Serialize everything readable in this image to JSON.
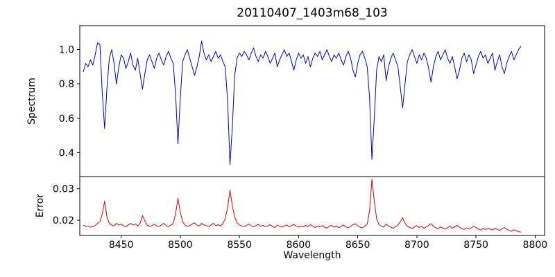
{
  "chart_data": {
    "type": "line",
    "title": "20110407_1403m68_103",
    "xlabel": "Wavelength",
    "xlim": [
      8415,
      8808
    ],
    "xticks": [
      8450,
      8500,
      8550,
      8600,
      8650,
      8700,
      8750,
      8800
    ],
    "xtick_labels": [
      "8450",
      "8500",
      "8550",
      "8600",
      "8650",
      "8700",
      "8750",
      "8800"
    ],
    "grid": false,
    "legend": "none",
    "x": [
      8418,
      8420,
      8422,
      8424,
      8426,
      8428,
      8430,
      8432,
      8434,
      8436,
      8438,
      8440,
      8442,
      8444,
      8446,
      8448,
      8450,
      8452,
      8454,
      8456,
      8458,
      8460,
      8462,
      8464,
      8466,
      8468,
      8470,
      8472,
      8474,
      8476,
      8478,
      8480,
      8482,
      8484,
      8486,
      8488,
      8490,
      8492,
      8494,
      8496,
      8498,
      8500,
      8502,
      8504,
      8506,
      8508,
      8510,
      8512,
      8514,
      8516,
      8518,
      8520,
      8522,
      8524,
      8526,
      8528,
      8530,
      8532,
      8534,
      8536,
      8538,
      8540,
      8542,
      8544,
      8546,
      8548,
      8550,
      8552,
      8554,
      8556,
      8558,
      8560,
      8562,
      8564,
      8566,
      8568,
      8570,
      8572,
      8574,
      8576,
      8578,
      8580,
      8582,
      8584,
      8586,
      8588,
      8590,
      8592,
      8594,
      8596,
      8598,
      8600,
      8602,
      8604,
      8606,
      8608,
      8610,
      8612,
      8614,
      8616,
      8618,
      8620,
      8622,
      8624,
      8626,
      8628,
      8630,
      8632,
      8634,
      8636,
      8638,
      8640,
      8642,
      8644,
      8646,
      8648,
      8650,
      8652,
      8654,
      8656,
      8658,
      8660,
      8662,
      8664,
      8666,
      8668,
      8670,
      8672,
      8674,
      8676,
      8678,
      8680,
      8682,
      8684,
      8686,
      8688,
      8690,
      8692,
      8694,
      8696,
      8698,
      8700,
      8702,
      8704,
      8706,
      8708,
      8710,
      8712,
      8714,
      8716,
      8718,
      8720,
      8722,
      8724,
      8726,
      8728,
      8730,
      8732,
      8734,
      8736,
      8738,
      8740,
      8742,
      8744,
      8746,
      8748,
      8750,
      8752,
      8754,
      8756,
      8758,
      8760,
      8762,
      8764,
      8766,
      8768,
      8770,
      8772,
      8774,
      8776,
      8778,
      8780,
      8782,
      8784,
      8786,
      8788
    ],
    "panels": [
      {
        "name": "spectrum",
        "ylabel": "Spectrum",
        "color": "#0000cc",
        "ylim": [
          0.26,
          1.14
        ],
        "yticks": [
          0.4,
          0.6,
          0.8,
          1.0
        ],
        "ytick_labels": [
          "0.4",
          "0.6",
          "0.8",
          "1.0"
        ],
        "values": [
          0.87,
          0.92,
          0.9,
          0.94,
          0.91,
          0.97,
          1.04,
          1.03,
          0.75,
          0.54,
          0.78,
          0.95,
          1.0,
          0.92,
          0.8,
          0.9,
          0.97,
          0.95,
          0.89,
          0.93,
          0.98,
          0.91,
          0.88,
          0.95,
          0.86,
          0.77,
          0.86,
          0.94,
          0.97,
          0.93,
          0.89,
          0.95,
          0.98,
          0.94,
          0.91,
          0.96,
          0.99,
          0.95,
          0.92,
          0.74,
          0.45,
          0.72,
          0.93,
          0.97,
          1.0,
          0.95,
          0.9,
          0.85,
          0.9,
          0.96,
          1.05,
          0.98,
          0.94,
          0.97,
          0.93,
          0.96,
          0.99,
          0.95,
          0.97,
          0.93,
          0.9,
          0.7,
          0.33,
          0.55,
          0.85,
          0.95,
          0.98,
          0.96,
          0.99,
          0.97,
          0.94,
          0.98,
          1.01,
          0.96,
          0.93,
          0.97,
          0.95,
          0.99,
          0.96,
          0.92,
          0.95,
          0.98,
          0.9,
          0.94,
          0.97,
          1.0,
          0.96,
          0.98,
          0.93,
          0.88,
          0.94,
          0.98,
          0.95,
          0.97,
          0.92,
          0.96,
          0.9,
          0.95,
          0.98,
          0.96,
          0.99,
          0.94,
          0.97,
          1.0,
          0.96,
          0.93,
          0.97,
          0.95,
          0.98,
          0.94,
          0.91,
          0.96,
          0.99,
          0.95,
          0.88,
          0.84,
          0.92,
          0.97,
          0.99,
          0.95,
          0.9,
          0.72,
          0.36,
          0.6,
          0.88,
          0.96,
          0.93,
          0.97,
          0.82,
          0.9,
          0.95,
          0.98,
          0.94,
          0.9,
          0.78,
          0.66,
          0.8,
          0.93,
          0.97,
          1.0,
          0.96,
          0.92,
          0.97,
          0.94,
          0.98,
          0.95,
          0.89,
          0.81,
          0.9,
          0.96,
          0.99,
          0.94,
          0.97,
          1.0,
          0.95,
          0.92,
          0.96,
          0.9,
          0.83,
          0.88,
          0.95,
          0.98,
          0.93,
          0.97,
          0.94,
          0.86,
          0.91,
          0.96,
          0.99,
          0.95,
          0.97,
          0.92,
          0.95,
          0.98,
          0.88,
          0.93,
          0.97,
          0.9,
          0.86,
          0.92,
          0.96,
          0.99,
          0.94,
          0.97,
          1.0,
          1.02
        ]
      },
      {
        "name": "error",
        "ylabel": "Error",
        "color": "#dd0000",
        "ylim": [
          0.0152,
          0.0338
        ],
        "yticks": [
          0.02,
          0.03
        ],
        "ytick_labels": [
          "0.02",
          "0.03"
        ],
        "values": [
          0.0185,
          0.018,
          0.0182,
          0.0178,
          0.018,
          0.0183,
          0.019,
          0.0195,
          0.022,
          0.026,
          0.021,
          0.019,
          0.0185,
          0.0182,
          0.019,
          0.0185,
          0.0188,
          0.0182,
          0.018,
          0.0185,
          0.019,
          0.0185,
          0.0188,
          0.0182,
          0.019,
          0.0215,
          0.0198,
          0.0185,
          0.018,
          0.0183,
          0.0188,
          0.0182,
          0.018,
          0.0185,
          0.019,
          0.0183,
          0.018,
          0.0185,
          0.019,
          0.022,
          0.027,
          0.0225,
          0.0195,
          0.0185,
          0.018,
          0.0183,
          0.0188,
          0.0192,
          0.0185,
          0.0182,
          0.019,
          0.0185,
          0.0183,
          0.018,
          0.0185,
          0.019,
          0.0183,
          0.0186,
          0.0182,
          0.019,
          0.0205,
          0.024,
          0.0295,
          0.0245,
          0.021,
          0.0192,
          0.0185,
          0.0182,
          0.018,
          0.0184,
          0.0188,
          0.0182,
          0.0179,
          0.0183,
          0.0187,
          0.0181,
          0.0184,
          0.0179,
          0.0182,
          0.0186,
          0.018,
          0.0177,
          0.0184,
          0.0181,
          0.0178,
          0.0182,
          0.0185,
          0.0179,
          0.0183,
          0.0187,
          0.0181,
          0.0178,
          0.0182,
          0.0179,
          0.0184,
          0.018,
          0.0186,
          0.0181,
          0.0177,
          0.0182,
          0.0179,
          0.0183,
          0.0178,
          0.0175,
          0.0181,
          0.0184,
          0.0178,
          0.0182,
          0.0176,
          0.0181,
          0.0185,
          0.0179,
          0.0176,
          0.0181,
          0.0186,
          0.0189,
          0.0182,
          0.0178,
          0.0176,
          0.0181,
          0.0188,
          0.023,
          0.033,
          0.026,
          0.0205,
          0.0186,
          0.0181,
          0.0178,
          0.0188,
          0.0182,
          0.0178,
          0.0175,
          0.018,
          0.0185,
          0.0195,
          0.0208,
          0.019,
          0.0181,
          0.0177,
          0.0174,
          0.0179,
          0.0183,
          0.0177,
          0.0181,
          0.0175,
          0.0179,
          0.0184,
          0.0189,
          0.0181,
          0.0176,
          0.0173,
          0.0179,
          0.0175,
          0.0172,
          0.0177,
          0.0181,
          0.0175,
          0.0179,
          0.0184,
          0.0178,
          0.0173,
          0.0171,
          0.0176,
          0.0172,
          0.0176,
          0.0181,
          0.0177,
          0.0172,
          0.0169,
          0.0174,
          0.0171,
          0.0176,
          0.0172,
          0.0169,
          0.0175,
          0.0171,
          0.0168,
          0.0173,
          0.0177,
          0.0171,
          0.0168,
          0.0165,
          0.017,
          0.0167,
          0.0164,
          0.0162
        ]
      }
    ]
  }
}
